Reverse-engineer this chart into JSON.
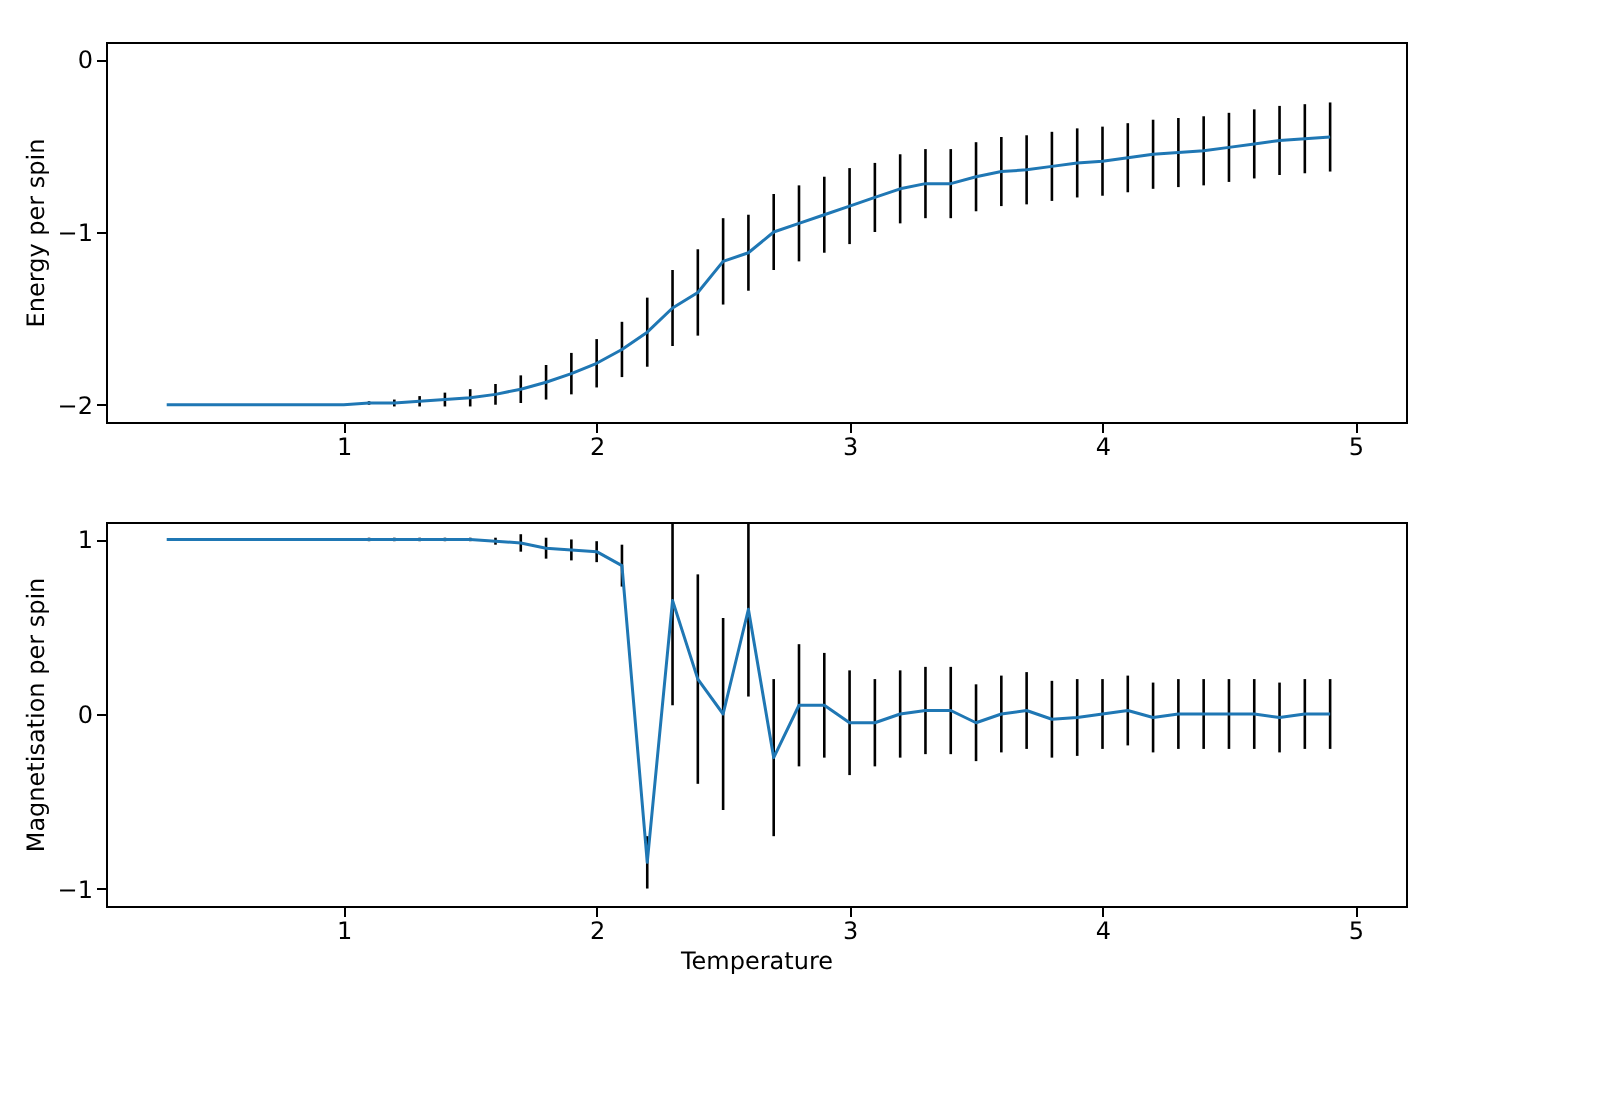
{
  "chart_data": [
    {
      "type": "line",
      "ylabel": "Energy per spin",
      "xlim": [
        0.06,
        5.2
      ],
      "xticks": [
        1,
        2,
        3,
        4,
        5
      ],
      "ylim": [
        -2.1,
        0.1
      ],
      "yticks": [
        -2,
        -1,
        0
      ],
      "grid": false,
      "marker": "none",
      "line_style": "solid",
      "x": [
        0.3,
        0.4,
        0.5,
        0.6,
        0.7,
        0.8,
        0.9,
        1.0,
        1.1,
        1.2,
        1.3,
        1.4,
        1.5,
        1.6,
        1.7,
        1.8,
        1.9,
        2.0,
        2.1,
        2.2,
        2.3,
        2.4,
        2.5,
        2.6,
        2.7,
        2.8,
        2.9,
        3.0,
        3.1,
        3.2,
        3.3,
        3.4,
        3.5,
        3.6,
        3.7,
        3.8,
        3.9,
        4.0,
        4.1,
        4.2,
        4.3,
        4.4,
        4.5,
        4.6,
        4.7,
        4.8,
        4.9
      ],
      "series": [
        {
          "color": "#1f77b4",
          "values": [
            -2.0,
            -2.0,
            -2.0,
            -2.0,
            -2.0,
            -2.0,
            -2.0,
            -2.0,
            -1.99,
            -1.99,
            -1.98,
            -1.97,
            -1.96,
            -1.94,
            -1.91,
            -1.87,
            -1.82,
            -1.76,
            -1.68,
            -1.58,
            -1.44,
            -1.35,
            -1.17,
            -1.12,
            -1.0,
            -0.95,
            -0.9,
            -0.85,
            -0.8,
            -0.75,
            -0.72,
            -0.72,
            -0.68,
            -0.65,
            -0.64,
            -0.62,
            -0.6,
            -0.59,
            -0.57,
            -0.55,
            -0.54,
            -0.53,
            -0.51,
            -0.49,
            -0.47,
            -0.46,
            -0.45
          ],
          "errors": [
            0,
            0,
            0,
            0,
            0,
            0,
            0,
            0,
            0.01,
            0.02,
            0.03,
            0.04,
            0.05,
            0.06,
            0.08,
            0.1,
            0.12,
            0.14,
            0.16,
            0.2,
            0.22,
            0.25,
            0.25,
            0.22,
            0.22,
            0.22,
            0.22,
            0.22,
            0.2,
            0.2,
            0.2,
            0.2,
            0.2,
            0.2,
            0.2,
            0.2,
            0.2,
            0.2,
            0.2,
            0.2,
            0.2,
            0.2,
            0.2,
            0.2,
            0.2,
            0.2,
            0.2
          ]
        }
      ]
    },
    {
      "type": "line",
      "xlabel": "Temperature",
      "ylabel": "Magnetisation per spin",
      "xlim": [
        0.06,
        5.2
      ],
      "xticks": [
        1,
        2,
        3,
        4,
        5
      ],
      "ylim": [
        -1.1,
        1.1
      ],
      "yticks": [
        -1,
        0,
        1
      ],
      "grid": false,
      "marker": "none",
      "line_style": "solid",
      "x": [
        0.3,
        0.4,
        0.5,
        0.6,
        0.7,
        0.8,
        0.9,
        1.0,
        1.1,
        1.2,
        1.3,
        1.4,
        1.5,
        1.6,
        1.7,
        1.8,
        1.9,
        2.0,
        2.1,
        2.2,
        2.3,
        2.4,
        2.5,
        2.6,
        2.7,
        2.8,
        2.9,
        3.0,
        3.1,
        3.2,
        3.3,
        3.4,
        3.5,
        3.6,
        3.7,
        3.8,
        3.9,
        4.0,
        4.1,
        4.2,
        4.3,
        4.4,
        4.5,
        4.6,
        4.7,
        4.8,
        4.9
      ],
      "series": [
        {
          "color": "#1f77b4",
          "values": [
            1.0,
            1.0,
            1.0,
            1.0,
            1.0,
            1.0,
            1.0,
            1.0,
            1.0,
            1.0,
            1.0,
            1.0,
            1.0,
            0.99,
            0.98,
            0.95,
            0.94,
            0.93,
            0.85,
            -0.85,
            0.65,
            0.2,
            0.0,
            0.6,
            -0.25,
            0.05,
            0.05,
            -0.05,
            -0.05,
            0.0,
            0.02,
            0.02,
            -0.05,
            0.0,
            0.02,
            -0.03,
            -0.02,
            0.0,
            0.02,
            -0.02,
            0.0,
            0.0,
            0.0,
            0.0,
            -0.02,
            0.0,
            0.0
          ],
          "errors": [
            0,
            0,
            0,
            0,
            0,
            0,
            0,
            0,
            0.01,
            0.01,
            0.01,
            0.01,
            0.01,
            0.02,
            0.05,
            0.06,
            0.06,
            0.06,
            0.12,
            0.15,
            0.6,
            0.6,
            0.55,
            0.5,
            0.45,
            0.35,
            0.3,
            0.3,
            0.25,
            0.25,
            0.25,
            0.25,
            0.22,
            0.22,
            0.22,
            0.22,
            0.22,
            0.2,
            0.2,
            0.2,
            0.2,
            0.2,
            0.2,
            0.2,
            0.2,
            0.2,
            0.2
          ]
        }
      ]
    }
  ]
}
